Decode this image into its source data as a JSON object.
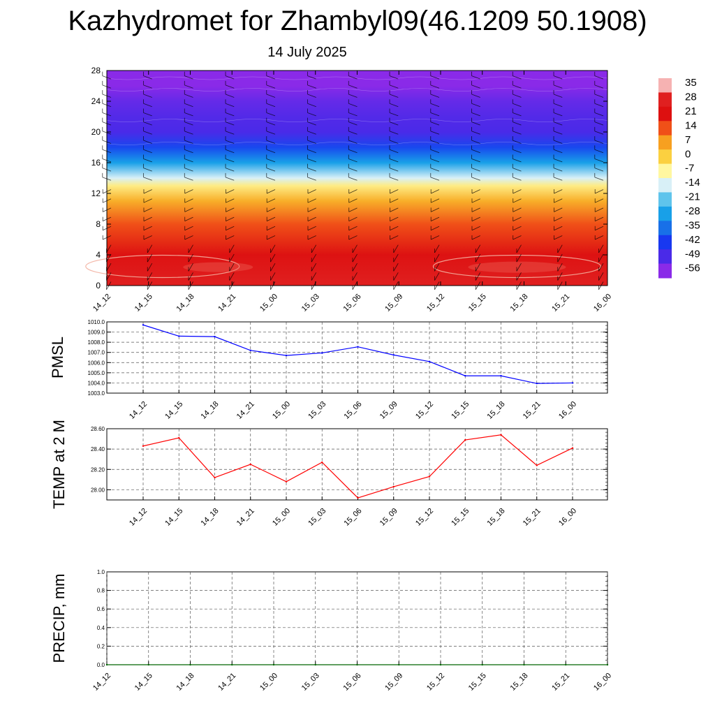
{
  "header": {
    "title": "Kazhydromet for Zhambyl09(46.1209 50.1908)",
    "subtitle": "14 July 2025"
  },
  "colors": {
    "pmsl_line": "#0000ff",
    "temp_line": "#ff0000",
    "precip_line": "#006400",
    "grid": "#555555"
  },
  "chart_data": [
    {
      "type": "heatmap",
      "name": "cross-section",
      "x_tick_labels": [
        "14_12",
        "14_15",
        "14_18",
        "14_21",
        "15_00",
        "15_03",
        "15_06",
        "15_09",
        "15_12",
        "15_15",
        "15_18",
        "15_21",
        "16_00"
      ],
      "y_tick_labels": [
        "0",
        "4",
        "8",
        "12",
        "16",
        "20",
        "24",
        "28"
      ],
      "ylim": [
        0,
        28
      ],
      "colorbar_labels": [
        "35",
        "28",
        "21",
        "14",
        "7",
        "0",
        "-7",
        "-14",
        "-21",
        "-28",
        "-35",
        "-42",
        "-49",
        "-56"
      ],
      "colorbar_stops": [
        {
          "value": 35,
          "color": "#f6b2b2"
        },
        {
          "value": 28,
          "color": "#e02020"
        },
        {
          "value": 21,
          "color": "#dd1010"
        },
        {
          "value": 14,
          "color": "#f05018"
        },
        {
          "value": 7,
          "color": "#f7a020"
        },
        {
          "value": 0,
          "color": "#fbd040"
        },
        {
          "value": -7,
          "color": "#fff7a0"
        },
        {
          "value": -14,
          "color": "#d8f0f7"
        },
        {
          "value": -21,
          "color": "#5fc4ec"
        },
        {
          "value": -28,
          "color": "#18a0e8"
        },
        {
          "value": -35,
          "color": "#1870e8"
        },
        {
          "value": -42,
          "color": "#1838f0"
        },
        {
          "value": -49,
          "color": "#4a2ae8"
        },
        {
          "value": -56,
          "color": "#8a2ae8"
        }
      ],
      "level_profile": [
        {
          "level": 0,
          "value": 28
        },
        {
          "level": 4,
          "value": 22
        },
        {
          "level": 8,
          "value": 14
        },
        {
          "level": 11,
          "value": 5
        },
        {
          "level": 13,
          "value": -5
        },
        {
          "level": 14,
          "value": -14
        },
        {
          "level": 16,
          "value": -28
        },
        {
          "level": 18,
          "value": -40
        },
        {
          "level": 20,
          "value": -49
        },
        {
          "level": 22,
          "value": -50
        },
        {
          "level": 24,
          "value": -52
        },
        {
          "level": 26,
          "value": -56
        },
        {
          "level": 28,
          "value": -58
        }
      ]
    },
    {
      "type": "line",
      "name": "pmsl",
      "ylabel": "PMSL",
      "categories": [
        "14_12",
        "14_15",
        "14_18",
        "14_21",
        "15_00",
        "15_03",
        "15_06",
        "15_09",
        "15_12",
        "15_15",
        "15_18",
        "15_21",
        "16_00"
      ],
      "values": [
        1009.7,
        1008.6,
        1008.55,
        1007.2,
        1006.7,
        1006.95,
        1007.55,
        1006.75,
        1006.1,
        1004.7,
        1004.7,
        1003.95,
        1004.0
      ],
      "ylim": [
        1003.0,
        1010.0
      ],
      "y_tick_labels": [
        "1010.0",
        "1009.0",
        "1008.0",
        "1007.0",
        "1006.0",
        "1005.0",
        "1004.0",
        "1003.0"
      ],
      "grid": true
    },
    {
      "type": "line",
      "name": "temp2m",
      "ylabel": "TEMP at 2 M",
      "categories": [
        "14_12",
        "14_15",
        "14_18",
        "14_21",
        "15_00",
        "15_03",
        "15_06",
        "15_09",
        "15_12",
        "15_15",
        "15_18",
        "15_21",
        "16_00"
      ],
      "values": [
        28.43,
        28.51,
        28.12,
        28.25,
        28.08,
        28.27,
        27.92,
        28.03,
        28.13,
        28.49,
        28.54,
        28.24,
        28.41
      ],
      "ylim": [
        27.9,
        28.6
      ],
      "y_tick_labels": [
        "28.60",
        "28.40",
        "28.20",
        "28.00"
      ],
      "grid": true
    },
    {
      "type": "line",
      "name": "precip",
      "ylabel": "PRECIP, mm",
      "x_tick_labels": [
        "14_12",
        "14_15",
        "14_18",
        "14_21",
        "15_00",
        "15_03",
        "15_06",
        "15_09",
        "15_12",
        "15_15",
        "15_18",
        "15_21",
        "16_00"
      ],
      "values": [
        0,
        0,
        0,
        0,
        0,
        0,
        0,
        0,
        0,
        0,
        0,
        0,
        0
      ],
      "ylim": [
        0.0,
        1.0
      ],
      "y_tick_labels": [
        "1.0",
        "0.8",
        "0.6",
        "0.4",
        "0.2",
        "0.0"
      ],
      "grid": true
    }
  ]
}
